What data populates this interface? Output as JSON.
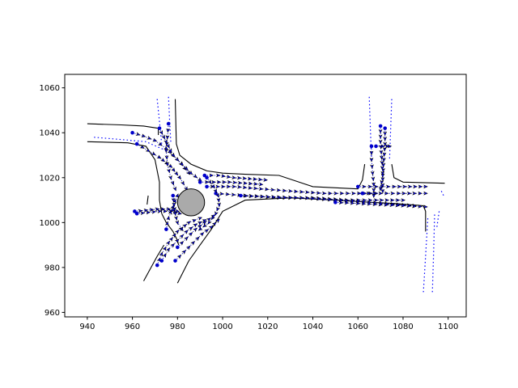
{
  "chart_data": {
    "type": "scatter",
    "title": "",
    "xlabel": "",
    "ylabel": "",
    "xlim": [
      930,
      1108
    ],
    "ylim": [
      958,
      1066
    ],
    "grid": false,
    "x_ticks": [
      940,
      960,
      980,
      1000,
      1020,
      1040,
      1060,
      1080,
      1100
    ],
    "y_ticks": [
      960,
      980,
      1000,
      1020,
      1040,
      1060
    ],
    "colors": {
      "boundary": "#000000",
      "lane_centerline": "#0000ff",
      "trajectory": "#0000cc",
      "agent_marker": "#000000",
      "obstacle_fill": "#aaaaaa",
      "obstacle_edge": "#000000"
    },
    "road_boundaries": [
      {
        "name": "north-west-outer",
        "x": [
          940,
          955,
          965,
          971.5
        ],
        "y": [
          1044,
          1043.5,
          1043,
          1042
        ]
      },
      {
        "name": "north-arm-right",
        "x": [
          979,
          979.5,
          981,
          986,
          993,
          1000,
          1010,
          1025,
          1040,
          1060,
          1062,
          1063
        ],
        "y": [
          1055,
          1035,
          1030,
          1026,
          1023,
          1022,
          1021.5,
          1021,
          1016,
          1015,
          1019,
          1026
        ]
      },
      {
        "name": "west-inner",
        "x": [
          940,
          958,
          966,
          970,
          972,
          972,
          973
        ],
        "y": [
          1036,
          1035.5,
          1034,
          1028,
          1018,
          1010,
          1004
        ]
      },
      {
        "name": "west-inner-b",
        "x": [
          973,
          975,
          978,
          980,
          980.5
        ],
        "y": [
          1004,
          1000,
          996,
          992,
          990
        ]
      },
      {
        "name": "east-inner",
        "x": [
          1075,
          1076,
          1080,
          1098.5
        ],
        "y": [
          1026,
          1020,
          1018,
          1017.5
        ]
      },
      {
        "name": "south-inner",
        "x": [
          980,
          985,
          990,
          995,
          1000,
          1010,
          1030,
          1050,
          1066,
          1076,
          1089,
          1090,
          1090
        ],
        "y": [
          973,
          983,
          990,
          997,
          1005,
          1010,
          1011,
          1010,
          1009,
          1008.5,
          1007.5,
          1005,
          996
        ]
      },
      {
        "name": "south-west-arm",
        "x": [
          965,
          971,
          974
        ],
        "y": [
          974,
          985,
          990
        ]
      },
      {
        "name": "west-stub",
        "x": [
          967,
          966.5
        ],
        "y": [
          1012,
          1008
        ]
      },
      {
        "name": "north-left",
        "x": [
          971.5,
          971.5
        ],
        "y": [
          1042,
          1039
        ]
      }
    ],
    "lane_centerlines": [
      {
        "x": [
          943,
          955,
          966,
          975
        ],
        "y": [
          1038,
          1037,
          1036,
          1032
        ]
      },
      {
        "x": [
          971,
          972,
          973
        ],
        "y": [
          1055,
          1045,
          1035
        ]
      },
      {
        "x": [
          976,
          976.5,
          977
        ],
        "y": [
          1056,
          1045,
          1036
        ]
      },
      {
        "x": [
          1065,
          1065.5,
          1066
        ],
        "y": [
          1056,
          1042,
          1028
        ]
      },
      {
        "x": [
          1075,
          1074.5,
          1074
        ],
        "y": [
          1055,
          1042,
          1028
        ]
      },
      {
        "x": [
          1089,
          1090,
          1091
        ],
        "y": [
          969,
          985,
          1002
        ]
      },
      {
        "x": [
          1093,
          1093.5,
          1094
        ],
        "y": [
          969,
          985,
          1004
        ]
      },
      {
        "x": [
          1097,
          1098
        ],
        "y": [
          1014,
          1012
        ]
      },
      {
        "x": [
          1096,
          1095
        ],
        "y": [
          1005,
          998
        ]
      }
    ],
    "obstacle": {
      "type": "circle",
      "x": 986,
      "y": 1009,
      "r": 6
    },
    "trajectories": [
      {
        "x": [
          960,
          965,
          970,
          975,
          980,
          985
        ],
        "y": [
          1040,
          1038.5,
          1036.5,
          1033,
          1028,
          1022
        ]
      },
      {
        "x": [
          962,
          967,
          972,
          977,
          981,
          984
        ],
        "y": [
          1035,
          1032,
          1029,
          1025,
          1020,
          1015
        ]
      },
      {
        "x": [
          976,
          975.5,
          975,
          975.5,
          977,
          979
        ],
        "y": [
          1044,
          1038,
          1032,
          1026,
          1020,
          1015
        ]
      },
      {
        "x": [
          972,
          975,
          978,
          982,
          986,
          990
        ],
        "y": [
          1042,
          1036,
          1030,
          1026,
          1022,
          1019
        ]
      },
      {
        "x": [
          961,
          966,
          971,
          976,
          980
        ],
        "y": [
          1005,
          1005.5,
          1006,
          1006,
          1005
        ]
      },
      {
        "x": [
          962,
          967,
          972,
          977,
          981
        ],
        "y": [
          1004,
          1004.5,
          1005,
          1005,
          1004
        ]
      },
      {
        "x": [
          971,
          973,
          976,
          980,
          985,
          990
        ],
        "y": [
          981,
          986,
          991,
          996,
          1000,
          1002
        ]
      },
      {
        "x": [
          973,
          976,
          980,
          984,
          988,
          992
        ],
        "y": [
          983,
          988,
          992,
          996,
          999,
          1001
        ]
      },
      {
        "x": [
          979,
          983,
          987,
          991,
          995,
          998
        ],
        "y": [
          983,
          987,
          991,
          995,
          998,
          1001
        ]
      },
      {
        "x": [
          980,
          984,
          988,
          992,
          996
        ],
        "y": [
          989,
          993,
          997,
          1000,
          1003
        ]
      },
      {
        "x": [
          975,
          976,
          978,
          980
        ],
        "y": [
          997,
          1002,
          1007,
          1012
        ]
      },
      {
        "x": [
          992,
          998,
          1005,
          1012,
          1019
        ],
        "y": [
          1021,
          1021,
          1020,
          1019.5,
          1019
        ]
      },
      {
        "x": [
          990,
          996,
          1003,
          1010,
          1017
        ],
        "y": [
          1018,
          1018,
          1018,
          1017.5,
          1017
        ]
      },
      {
        "x": [
          993,
          1005,
          1017,
          1030,
          1045,
          1058,
          1068
        ],
        "y": [
          1016,
          1016,
          1015,
          1014,
          1013,
          1013,
          1013
        ]
      },
      {
        "x": [
          997,
          1010,
          1025,
          1040,
          1055,
          1068,
          1080
        ],
        "y": [
          1013,
          1012,
          1011,
          1011,
          1010,
          1010,
          1010
        ]
      },
      {
        "x": [
          1008,
          1020,
          1035,
          1050,
          1065,
          1078,
          1085
        ],
        "y": [
          1012,
          1011.5,
          1011,
          1010,
          1009,
          1008,
          1007.5
        ]
      },
      {
        "x": [
          1050,
          1060,
          1070,
          1080,
          1090
        ],
        "y": [
          1009,
          1008.5,
          1008,
          1007.5,
          1007
        ]
      },
      {
        "x": [
          1060,
          1068,
          1076,
          1083,
          1090
        ],
        "y": [
          1016,
          1016,
          1016,
          1016,
          1016
        ]
      },
      {
        "x": [
          1062,
          1070,
          1078,
          1085,
          1090
        ],
        "y": [
          1013,
          1013,
          1013,
          1013,
          1013
        ]
      },
      {
        "x": [
          1066,
          1066,
          1066.5,
          1067,
          1067
        ],
        "y": [
          1034,
          1028,
          1022,
          1017,
          1012
        ]
      },
      {
        "x": [
          1070,
          1070,
          1070.5,
          1071,
          1071
        ],
        "y": [
          1043,
          1036,
          1029,
          1022,
          1014
        ]
      },
      {
        "x": [
          1072,
          1072,
          1071.5,
          1071,
          1070
        ],
        "y": [
          1042,
          1035,
          1028,
          1021,
          1015
        ]
      },
      {
        "x": [
          1068,
          1071,
          1073,
          1074
        ],
        "y": [
          1034,
          1034,
          1034,
          1034
        ]
      },
      {
        "x": [
          993,
          996,
          998,
          998.5,
          997,
          994,
          990
        ],
        "y": [
          1020,
          1016,
          1012,
          1008,
          1004,
          1000,
          997
        ]
      },
      {
        "x": [
          978,
          978.5,
          979,
          980,
          982
        ],
        "y": [
          1012,
          1008,
          1004,
          1000,
          997
        ]
      }
    ]
  }
}
